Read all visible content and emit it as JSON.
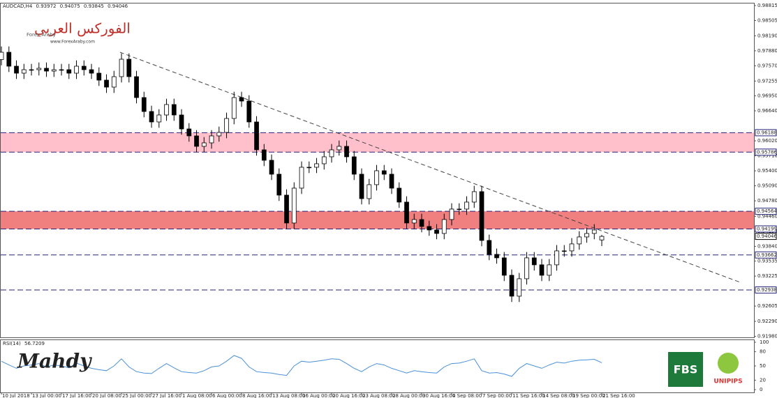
{
  "chart_data": {
    "type": "candlestick",
    "symbol": "AUDCAD,H4",
    "xlim": [
      -0.19,
      100.28
    ],
    "xticks": [
      {
        "value": 0,
        "label": "10 Jul 2018"
      },
      {
        "value": 4,
        "label": "13 Jul 00:00"
      },
      {
        "value": 8,
        "label": "17 Jul 16:00"
      },
      {
        "value": 12,
        "label": "20 Jul 08:00"
      },
      {
        "value": 16,
        "label": "25 Jul 00:00"
      },
      {
        "value": 20,
        "label": "27 Jul 16:00"
      },
      {
        "value": 24,
        "label": "1 Aug 08:00"
      },
      {
        "value": 28,
        "label": "6 Aug 00:00"
      },
      {
        "value": 32,
        "label": "8 Aug 16:00"
      },
      {
        "value": 36,
        "label": "13 Aug 08:00"
      },
      {
        "value": 40,
        "label": "16 Aug 00:00"
      },
      {
        "value": 44,
        "label": "20 Aug 16:00"
      },
      {
        "value": 48,
        "label": "23 Aug 08:00"
      },
      {
        "value": 52,
        "label": "28 Aug 00:00"
      },
      {
        "value": 56,
        "label": "30 Aug 16:00"
      },
      {
        "value": 60,
        "label": "4 Sep 08:00"
      },
      {
        "value": 64,
        "label": "7 Sep 00:00"
      },
      {
        "value": 68,
        "label": "11 Sep 16:00"
      },
      {
        "value": 72,
        "label": "14 Sep 08:00"
      },
      {
        "value": 76,
        "label": "19 Sep 00:00"
      },
      {
        "value": 80,
        "label": "21 Sep 16:00"
      }
    ],
    "ylim": [
      0.91959,
      0.98858
    ],
    "yticks": [
      0.98815,
      0.98505,
      {
        "value": 0.9819,
        "label": "0.98190"
      },
      {
        "value": 0.9788,
        "label": "0.97880"
      },
      {
        "value": 0.9757,
        "label": "0.97570"
      },
      0.97255,
      {
        "value": 0.9695,
        "label": "0.96950"
      },
      {
        "value": 0.9664,
        "label": "0.96640"
      },
      {
        "value": 0.9602,
        "label": "0.96020"
      },
      {
        "value": 0.9571,
        "label": "0.95710"
      },
      {
        "value": 0.954,
        "label": "0.95400"
      },
      {
        "value": 0.9509,
        "label": "0.95090"
      },
      {
        "value": 0.9478,
        "label": "0.94780"
      },
      {
        "value": 0.9446,
        "label": "0.94460"
      },
      {
        "value": 0.9415,
        "label": "0.94150"
      },
      {
        "value": 0.9384,
        "label": "0.93840"
      },
      0.93535,
      0.93225,
      0.92605,
      {
        "value": 0.9229,
        "label": "0.92290"
      },
      {
        "value": 0.9198,
        "label": "0.91980"
      }
    ],
    "open": [
      0.977,
      0.9785,
      0.97562,
      0.97418,
      0.9749,
      0.9749,
      0.97519,
      0.97461,
      0.9749,
      0.9749,
      0.97418,
      0.97562,
      0.9749,
      0.97418,
      0.97274,
      0.9713,
      0.97346,
      0.97706,
      0.97346,
      0.96914,
      0.96626,
      0.9641,
      0.96554,
      0.9677,
      0.96554,
      0.96266,
      0.96122,
      0.95906,
      0.95978,
      0.96122,
      0.96194,
      0.96482,
      0.96914,
      0.96842,
      0.9641,
      0.95834,
      0.95618,
      0.9533,
      0.94898,
      0.94322,
      0.95042,
      0.95474,
      0.95474,
      0.95546,
      0.9569,
      0.95834,
      0.95906,
      0.9569,
      0.9533,
      0.94826,
      0.95114,
      0.95402,
      0.9533,
      0.95042,
      0.94754,
      0.94322,
      0.94394,
      0.9425,
      0.94178,
      0.94106,
      0.94394,
      0.9461,
      0.9461,
      0.94754,
      0.9497,
      0.93962,
      0.93674,
      0.93602,
      0.93242,
      0.9281,
      0.9317,
      0.93602,
      0.93458,
      0.93242,
      0.93458,
      0.93746,
      0.93746,
      0.9389,
      0.94034,
      0.94106,
      0.93972
    ],
    "high": [
      0.9797,
      0.9797,
      0.97682,
      0.9761,
      0.9761,
      0.97639,
      0.97639,
      0.9761,
      0.9761,
      0.9761,
      0.97682,
      0.97682,
      0.9761,
      0.97538,
      0.97394,
      0.97466,
      0.97826,
      0.97826,
      0.97466,
      0.97034,
      0.96746,
      0.96674,
      0.9689,
      0.9689,
      0.96674,
      0.96386,
      0.96242,
      0.96098,
      0.96242,
      0.96314,
      0.96602,
      0.97034,
      0.97034,
      0.96962,
      0.9653,
      0.95954,
      0.95738,
      0.9545,
      0.95018,
      0.95162,
      0.95594,
      0.95594,
      0.95666,
      0.9581,
      0.95954,
      0.96026,
      0.96026,
      0.9581,
      0.9545,
      0.95234,
      0.95522,
      0.95522,
      0.9545,
      0.95162,
      0.94874,
      0.94514,
      0.94514,
      0.9437,
      0.94298,
      0.94514,
      0.9473,
      0.9473,
      0.94874,
      0.9509,
      0.9509,
      0.94082,
      0.93794,
      0.93722,
      0.93362,
      0.9329,
      0.93722,
      0.93722,
      0.93578,
      0.93578,
      0.93866,
      0.93866,
      0.9401,
      0.94154,
      0.94226,
      0.94298,
      0.94075
    ],
    "low": [
      0.9758,
      0.97442,
      0.97298,
      0.97298,
      0.9737,
      0.9737,
      0.97341,
      0.97341,
      0.9737,
      0.97298,
      0.97298,
      0.9737,
      0.97298,
      0.97154,
      0.9701,
      0.9701,
      0.97226,
      0.97226,
      0.96794,
      0.96506,
      0.9629,
      0.9629,
      0.96434,
      0.96434,
      0.96146,
      0.96002,
      0.95786,
      0.95786,
      0.95858,
      0.96002,
      0.96074,
      0.96362,
      0.96722,
      0.9629,
      0.95714,
      0.95498,
      0.9521,
      0.94778,
      0.94202,
      0.94202,
      0.94922,
      0.95354,
      0.95354,
      0.95426,
      0.9557,
      0.95714,
      0.9557,
      0.9521,
      0.94706,
      0.94706,
      0.94994,
      0.9521,
      0.94922,
      0.94634,
      0.94202,
      0.94202,
      0.9413,
      0.94058,
      0.93986,
      0.93986,
      0.94274,
      0.9449,
      0.9449,
      0.94634,
      0.93842,
      0.93554,
      0.93482,
      0.93122,
      0.9269,
      0.9269,
      0.9305,
      0.93338,
      0.93122,
      0.93122,
      0.93338,
      0.93626,
      0.93626,
      0.9377,
      0.93914,
      0.93986,
      0.93845
    ],
    "close": [
      0.9785,
      0.97562,
      0.97418,
      0.9749,
      0.9749,
      0.97519,
      0.97461,
      0.9749,
      0.9749,
      0.97418,
      0.97562,
      0.9749,
      0.97418,
      0.97274,
      0.9713,
      0.97346,
      0.97706,
      0.97346,
      0.96914,
      0.96626,
      0.9641,
      0.96554,
      0.9677,
      0.96554,
      0.96266,
      0.96122,
      0.95906,
      0.95978,
      0.96122,
      0.96194,
      0.96482,
      0.96914,
      0.96842,
      0.9641,
      0.95834,
      0.95618,
      0.9533,
      0.94898,
      0.94322,
      0.95042,
      0.95474,
      0.95474,
      0.95546,
      0.9569,
      0.95834,
      0.95906,
      0.9569,
      0.9533,
      0.94826,
      0.95114,
      0.95402,
      0.9533,
      0.95042,
      0.94754,
      0.94322,
      0.94394,
      0.9425,
      0.94178,
      0.94106,
      0.94394,
      0.9461,
      0.9461,
      0.94754,
      0.9497,
      0.93962,
      0.93674,
      0.93602,
      0.93242,
      0.9281,
      0.9317,
      0.93602,
      0.93458,
      0.93242,
      0.93458,
      0.93746,
      0.93746,
      0.9389,
      0.94034,
      0.94106,
      0.94178,
      0.94046
    ],
    "color": "#000000",
    "zones": [
      {
        "lower": 0.95786,
        "upper": 0.96188,
        "color": "#ffc0cb"
      },
      {
        "lower": 0.94199,
        "upper": 0.94564,
        "color": "#f08080"
      }
    ],
    "levels": [
      0.93662,
      0.92938
    ],
    "level_color": "#23237a",
    "trendline": {
      "x": [
        15.8,
        98.4
      ],
      "y": [
        0.9785,
        0.93099
      ],
      "color": "#444444"
    },
    "rsi": {
      "name": "RSI(14)",
      "ylim": [
        0,
        100
      ],
      "yticks": [
        100,
        80,
        50,
        20,
        0
      ],
      "color": "#4a90d9",
      "values": [
        60,
        52,
        45,
        50,
        52,
        55,
        48,
        52,
        50,
        46,
        56,
        50,
        45,
        42,
        40,
        50,
        65,
        48,
        38,
        35,
        34,
        45,
        55,
        46,
        38,
        36,
        35,
        40,
        48,
        50,
        60,
        72,
        66,
        48,
        38,
        36,
        35,
        32,
        30,
        50,
        60,
        58,
        60,
        62,
        65,
        64,
        55,
        45,
        38,
        48,
        55,
        52,
        45,
        40,
        35,
        40,
        38,
        36,
        35,
        48,
        55,
        56,
        60,
        65,
        40,
        35,
        36,
        33,
        28,
        45,
        55,
        50,
        45,
        52,
        58,
        56,
        60,
        62,
        63,
        64,
        56.7209
      ]
    },
    "watermarks": {
      "arabic": "الفوركس العربي",
      "brand": "Forex Araby",
      "site": "www.ForexAraby.com",
      "signature": "Mahdy",
      "logo1": "FBS",
      "logo2": "UNIPIPS"
    }
  }
}
